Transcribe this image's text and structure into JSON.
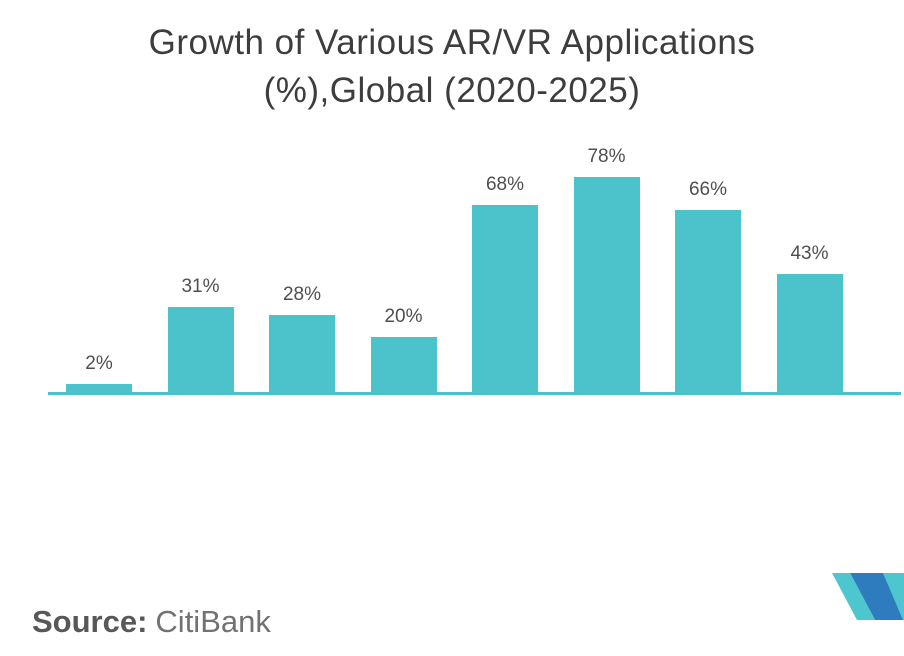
{
  "title": {
    "line1": "Growth of Various AR/VR Applications",
    "line2": "(%),Global (2020-2025)"
  },
  "source": {
    "label": "Source:",
    "value": "CitiBank"
  },
  "logo": {
    "name": "mordor-intelligence-m-logo",
    "teal": "#4ec6ce",
    "blue": "#2e7cbe"
  },
  "chart_data": {
    "type": "bar",
    "title": "Growth of Various AR/VR Applications (%),Global (2020-2025)",
    "categories": [],
    "values": [
      2,
      31,
      28,
      20,
      68,
      78,
      66,
      43
    ],
    "data_labels": [
      "2%",
      "31%",
      "28%",
      "20%",
      "68%",
      "78%",
      "66%",
      "43%"
    ],
    "xlabel": "",
    "ylabel": "",
    "ylim": [
      0,
      85
    ],
    "grid": false,
    "legend": false,
    "bar_color": "#4cc3ca",
    "axis_line_color": "#4cc3ca",
    "label_color": "#4f4f4f",
    "background": "#ffffff",
    "title_color": "#3d3d3d"
  }
}
